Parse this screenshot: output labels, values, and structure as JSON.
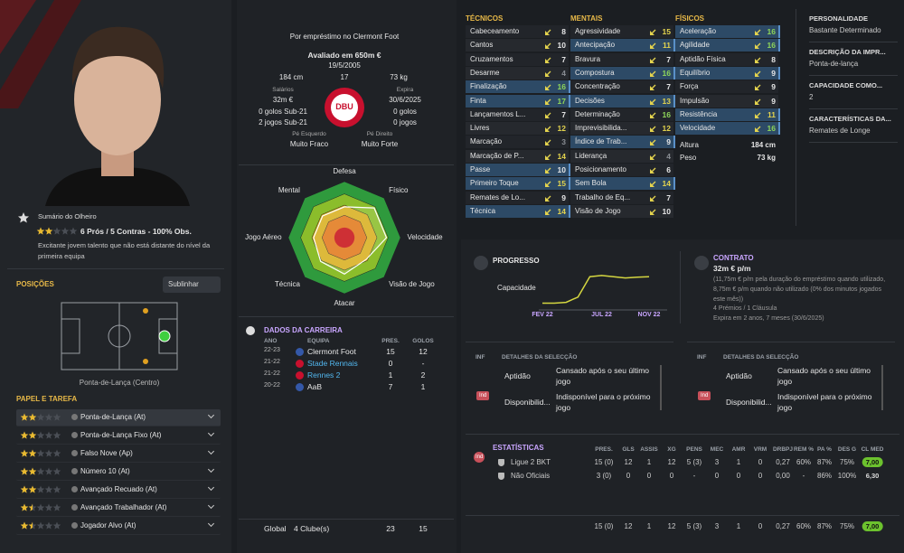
{
  "player": {
    "loan": "Por empréstimo no Clermont Foot",
    "value": "Avaliado em 650m €",
    "dob": "19/5/2005",
    "height": "184 cm",
    "age": 17,
    "weight": "73 kg",
    "wage_label": "Salários",
    "wage": "32m €",
    "expires_label": "Expira",
    "expires": "30/6/2025",
    "u21_goals": "0 golos Sub-21",
    "u21_apps": "2 jogos Sub-21",
    "goals": "0 golos",
    "apps": "0 jogos",
    "left_foot_label": "Pé Esquerdo",
    "left_foot": "Muito Fraco",
    "right_foot_label": "Pé Direito",
    "right_foot": "Muito Forte",
    "badge": "DBU"
  },
  "scout": {
    "title": "Sumário do Olheiro",
    "stars": 2,
    "summary": "6 Prós / 5 Contras - 100% Obs.",
    "text": "Excitante jovem talento que não está distante do nível da primeira equipa"
  },
  "positions": {
    "title": "POSIÇÕES",
    "button": "Sublinhar",
    "label": "Ponta-de-Lança (Centro)"
  },
  "roles": {
    "title": "PAPEL E TAREFA",
    "items": [
      {
        "name": "Ponta-de-Lança (At)",
        "stars": 2
      },
      {
        "name": "Ponta-de-Lança Fixo (At)",
        "stars": 2
      },
      {
        "name": "Falso Nove (Ap)",
        "stars": 2
      },
      {
        "name": "Número 10 (At)",
        "stars": 2
      },
      {
        "name": "Avançado Recuado (At)",
        "stars": 2
      },
      {
        "name": "Avançado Trabalhador (At)",
        "stars": 1.5
      },
      {
        "name": "Jogador Alvo (At)",
        "stars": 1.5
      }
    ]
  },
  "radar": {
    "type": "radar",
    "labels": [
      "Defesa",
      "Físico",
      "Velocidade",
      "Visão de Jogo",
      "Atacar",
      "Técnica",
      "Jogo Aéreo",
      "Mental"
    ],
    "values": [
      11,
      15,
      15,
      11,
      13,
      12,
      11,
      11
    ],
    "rlim": [
      0,
      20
    ]
  },
  "career": {
    "title": "DADOS DA CARREIRA",
    "headers": [
      "ANO",
      "EQUIPA",
      "PRES.",
      "GOLOS"
    ],
    "rows": [
      {
        "season": "22-23",
        "team": "Clermont Foot",
        "apps": "15",
        "goals": "12",
        "link": false
      },
      {
        "season": "21-22",
        "team": "Stade Rennais",
        "apps": "0",
        "goals": "-",
        "link": true
      },
      {
        "season": "21-22",
        "team": "Rennes 2",
        "apps": "1",
        "goals": "2",
        "link": true
      },
      {
        "season": "20-22",
        "team": "AaB",
        "apps": "7",
        "goals": "1",
        "link": false
      }
    ],
    "total": {
      "label": "Global",
      "clubs": "4 Clube(s)",
      "apps": "23",
      "goals": "15"
    }
  },
  "attributes": {
    "columns": [
      {
        "title": "TÉCNICOS",
        "items": [
          {
            "name": "Cabeceamento",
            "value": 8,
            "key": false
          },
          {
            "name": "Cantos",
            "value": 10,
            "key": false
          },
          {
            "name": "Cruzamentos",
            "value": 7,
            "key": false
          },
          {
            "name": "Desarme",
            "value": 4,
            "key": false
          },
          {
            "name": "Finalização",
            "value": 16,
            "key": true
          },
          {
            "name": "Finta",
            "value": 17,
            "key": true
          },
          {
            "name": "Lançamentos L...",
            "value": 7,
            "key": false
          },
          {
            "name": "Livres",
            "value": 12,
            "key": false
          },
          {
            "name": "Marcação",
            "value": 3,
            "key": false
          },
          {
            "name": "Marcação de P...",
            "value": 14,
            "key": false
          },
          {
            "name": "Passe",
            "value": 10,
            "key": true
          },
          {
            "name": "Primeiro Toque",
            "value": 15,
            "key": true
          },
          {
            "name": "Remates de Lo...",
            "value": 9,
            "key": false
          },
          {
            "name": "Técnica",
            "value": 14,
            "key": true
          }
        ]
      },
      {
        "title": "MENTAIS",
        "items": [
          {
            "name": "Agressividade",
            "value": 15,
            "key": false
          },
          {
            "name": "Antecipação",
            "value": 11,
            "key": true
          },
          {
            "name": "Bravura",
            "value": 7,
            "key": false
          },
          {
            "name": "Compostura",
            "value": 16,
            "key": true
          },
          {
            "name": "Concentração",
            "value": 7,
            "key": false
          },
          {
            "name": "Decisões",
            "value": 13,
            "key": true
          },
          {
            "name": "Determinação",
            "value": 16,
            "key": false
          },
          {
            "name": "Imprevisibilida...",
            "value": 12,
            "key": false
          },
          {
            "name": "Índice de Trab...",
            "value": 9,
            "key": true
          },
          {
            "name": "Liderança",
            "value": 4,
            "key": false
          },
          {
            "name": "Posicionamento",
            "value": 6,
            "key": false
          },
          {
            "name": "Sem Bola",
            "value": 14,
            "key": true
          },
          {
            "name": "Trabalho de Eq...",
            "value": 7,
            "key": false
          },
          {
            "name": "Visão de Jogo",
            "value": 10,
            "key": false
          }
        ]
      },
      {
        "title": "FÍSICOS",
        "items": [
          {
            "name": "Aceleração",
            "value": 16,
            "key": true
          },
          {
            "name": "Agilidade",
            "value": 16,
            "key": true
          },
          {
            "name": "Aptidão Física",
            "value": 8,
            "key": false
          },
          {
            "name": "Equilíbrio",
            "value": 9,
            "key": true
          },
          {
            "name": "Força",
            "value": 9,
            "key": false
          },
          {
            "name": "Impulsão",
            "value": 9,
            "key": false
          },
          {
            "name": "Resistência",
            "value": 11,
            "key": true
          },
          {
            "name": "Velocidade",
            "value": 16,
            "key": true
          }
        ]
      }
    ],
    "height_label": "Altura",
    "height": "184 cm",
    "weight_label": "Peso",
    "weight": "73 kg"
  },
  "info": [
    {
      "label": "PERSONALIDADE",
      "value": "Bastante Determinado"
    },
    {
      "label": "DESCRIÇÃO DA IMPR...",
      "value": "Ponta-de-lança"
    },
    {
      "label": "CAPACIDADE COMO...",
      "value": "2"
    },
    {
      "label": "CARACTERÍSTICAS DA...",
      "value": "Remates de Longe"
    }
  ],
  "progress": {
    "type": "line",
    "title": "PROGRESSO",
    "label": "Capacidade",
    "x": [
      "FEV 22",
      null,
      null,
      null,
      null,
      "JUL 22",
      null,
      null,
      null,
      "NOV 22"
    ],
    "values": [
      10,
      10,
      12,
      25,
      75,
      78,
      75,
      72,
      74,
      75
    ],
    "ylim": [
      0,
      100
    ],
    "color": "#d4d640"
  },
  "contract": {
    "title": "CONTRATO",
    "wage": "32m € p/m",
    "note": "(11,75m € p/m pela duração do empréstimo quando utilizado, 8,75m € p/m quando não utilizado (0% dos minutos jogados este mês))",
    "bonuses": "4 Prémios / 1 Cláusula",
    "expiry": "Expira em 2 anos, 7 meses (30/6/2025)"
  },
  "selection": [
    {
      "inf": "INF",
      "title": "DETALHES DA SELECÇÃO",
      "fitness_label": "Aptidão",
      "fitness": "Cansado após o seu último jogo",
      "badge": "Ind",
      "availability_label": "Disponibilid...",
      "availability": "Indisponível para o próximo jogo"
    },
    {
      "inf": "INF",
      "title": "DETALHES DA SELECÇÃO",
      "fitness_label": "Aptidão",
      "fitness": "Cansado após o seu último jogo",
      "badge": "Ind",
      "availability_label": "Disponibilid...",
      "availability": "Indisponível para o próximo jogo"
    }
  ],
  "stats": {
    "title": "ESTATÍSTICAS",
    "badge": "Ind",
    "headers": [
      "PRES.",
      "GLS",
      "ASSIS",
      "XG",
      "PENS",
      "MEC",
      "AMR",
      "VRM",
      "DRBPJ",
      "REM %",
      "PA %",
      "DES G",
      "CL MED"
    ],
    "rows": [
      {
        "name": "Ligue 2 BKT",
        "cells": [
          "15 (0)",
          "12",
          "1",
          "12",
          "5 (3)",
          "3",
          "1",
          "0",
          "0,27",
          "60%",
          "87%",
          "75%",
          "7,00"
        ]
      },
      {
        "name": "Não Oficiais",
        "cells": [
          "3 (0)",
          "0",
          "0",
          "0",
          "-",
          "0",
          "0",
          "0",
          "0,00",
          "-",
          "86%",
          "100%",
          "6,30"
        ]
      }
    ],
    "total": [
      "15 (0)",
      "12",
      "1",
      "12",
      "5 (3)",
      "3",
      "1",
      "0",
      "0,27",
      "60%",
      "87%",
      "75%",
      "7,00"
    ]
  }
}
